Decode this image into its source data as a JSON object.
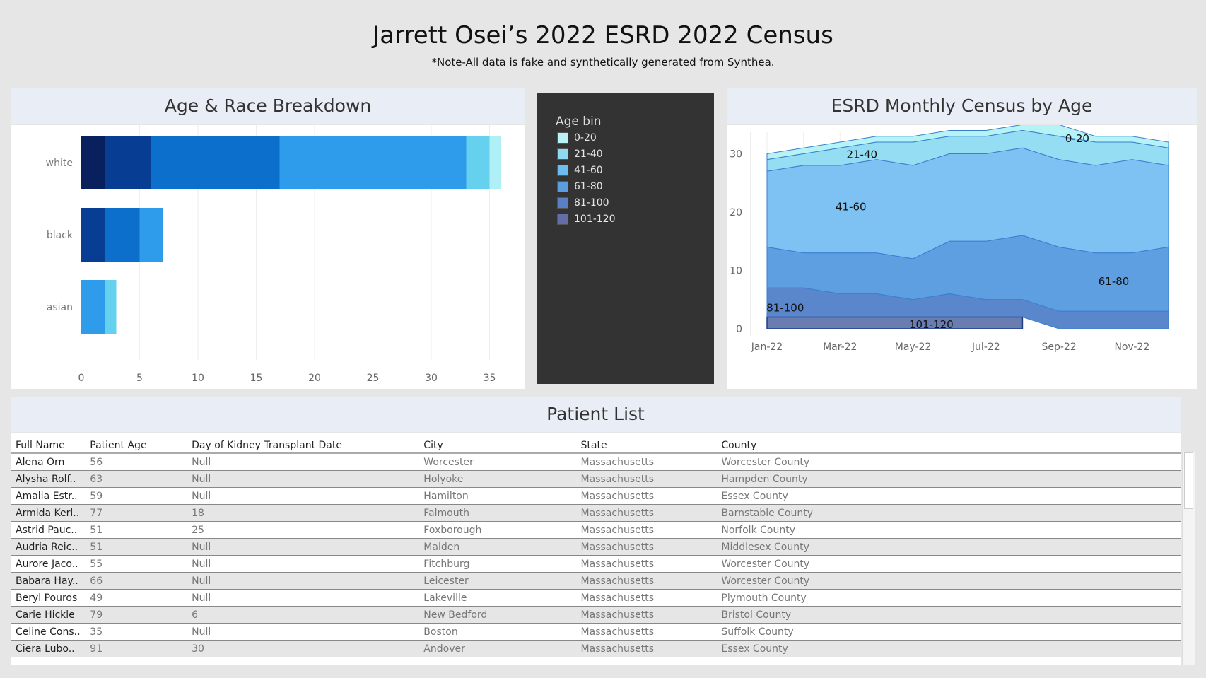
{
  "header": {
    "title": "Jarrett Osei’s 2022 ESRD 2022 Census",
    "subtitle": "*Note-All data is fake and synthetically generated from Synthea."
  },
  "legend": {
    "title": "Age bin",
    "items": [
      {
        "label": "0-20",
        "color": "#b8f2f5"
      },
      {
        "label": "21-40",
        "color": "#8fd9f0"
      },
      {
        "label": "41-60",
        "color": "#6dbcf0"
      },
      {
        "label": "61-80",
        "color": "#5a9ee0"
      },
      {
        "label": "81-100",
        "color": "#5a80c4"
      },
      {
        "label": "101-120",
        "color": "#636ea8"
      }
    ]
  },
  "patient_list": {
    "title": "Patient List",
    "columns": [
      "Full Name",
      "Patient Age",
      "Day of Kidney Transplant Date",
      "City",
      "State",
      "County"
    ],
    "rows": [
      [
        "Alena Orn",
        "56",
        "Null",
        "Worcester",
        "Massachusetts",
        "Worcester County"
      ],
      [
        "Alysha Rolf..",
        "63",
        "Null",
        "Holyoke",
        "Massachusetts",
        "Hampden County"
      ],
      [
        "Amalia Estr..",
        "59",
        "Null",
        "Hamilton",
        "Massachusetts",
        "Essex County"
      ],
      [
        "Armida Kerl..",
        "77",
        "18",
        "Falmouth",
        "Massachusetts",
        "Barnstable County"
      ],
      [
        "Astrid Pauc..",
        "51",
        "25",
        "Foxborough",
        "Massachusetts",
        "Norfolk County"
      ],
      [
        "Audria Reic..",
        "51",
        "Null",
        "Malden",
        "Massachusetts",
        "Middlesex County"
      ],
      [
        "Aurore Jaco..",
        "55",
        "Null",
        "Fitchburg",
        "Massachusetts",
        "Worcester County"
      ],
      [
        "Babara Hay..",
        "66",
        "Null",
        "Leicester",
        "Massachusetts",
        "Worcester County"
      ],
      [
        "Beryl Pouros",
        "49",
        "Null",
        "Lakeville",
        "Massachusetts",
        "Plymouth County"
      ],
      [
        "Carie Hickle",
        "79",
        "6",
        "New Bedford",
        "Massachusetts",
        "Bristol County"
      ],
      [
        "Celine Cons..",
        "35",
        "Null",
        "Boston",
        "Massachusetts",
        "Suffolk County"
      ],
      [
        "Ciera Lubo..",
        "91",
        "30",
        "Andover",
        "Massachusetts",
        "Essex County"
      ]
    ]
  },
  "chart_data": [
    {
      "type": "bar",
      "orientation": "horizontal",
      "stacked": true,
      "title": "Age & Race Breakdown",
      "categories": [
        "white",
        "black",
        "asian"
      ],
      "xlim": [
        0,
        36
      ],
      "xticks": [
        0,
        5,
        10,
        15,
        20,
        25,
        30,
        35
      ],
      "series": [
        {
          "name": "101-120",
          "color": "#08205e",
          "values": [
            2,
            0,
            0
          ]
        },
        {
          "name": "81-100",
          "color": "#083d94",
          "values": [
            4,
            2,
            0
          ]
        },
        {
          "name": "61-80",
          "color": "#0d6fcc",
          "values": [
            11,
            3,
            0
          ]
        },
        {
          "name": "41-60",
          "color": "#2e9cea",
          "values": [
            16,
            2,
            2
          ]
        },
        {
          "name": "21-40",
          "color": "#65d1ee",
          "values": [
            2,
            0,
            1
          ]
        },
        {
          "name": "0-20",
          "color": "#aef0f5",
          "values": [
            1,
            0,
            0
          ]
        }
      ]
    },
    {
      "type": "area",
      "stacked": true,
      "title": "ESRD Monthly Census by Age",
      "x": [
        "Jan-22",
        "Feb-22",
        "Mar-22",
        "Apr-22",
        "May-22",
        "Jun-22",
        "Jul-22",
        "Aug-22",
        "Sep-22",
        "Oct-22",
        "Nov-22",
        "Dec-22"
      ],
      "xticks": [
        "Jan-22",
        "Mar-22",
        "May-22",
        "Jul-22",
        "Sep-22",
        "Nov-22"
      ],
      "ylim": [
        0,
        35
      ],
      "yticks": [
        0,
        10,
        20,
        30
      ],
      "series": [
        {
          "name": "101-120",
          "color": "#6a7db0",
          "values": [
            2,
            2,
            2,
            2,
            2,
            2,
            2,
            2,
            null,
            null,
            null,
            null
          ]
        },
        {
          "name": "81-100",
          "color": "#5a86cc",
          "values": [
            5,
            5,
            4,
            4,
            3,
            4,
            3,
            3,
            3,
            3,
            3,
            3
          ]
        },
        {
          "name": "61-80",
          "color": "#5e9fe2",
          "values": [
            7,
            6,
            7,
            7,
            7,
            9,
            10,
            11,
            11,
            10,
            10,
            11
          ]
        },
        {
          "name": "41-60",
          "color": "#7dc2f2",
          "values": [
            13,
            15,
            15,
            16,
            16,
            15,
            15,
            15,
            15,
            15,
            16,
            14
          ]
        },
        {
          "name": "21-40",
          "color": "#94ddf2",
          "values": [
            2,
            2,
            3,
            3,
            4,
            3,
            3,
            3,
            4,
            4,
            3,
            3
          ]
        },
        {
          "name": "0-20",
          "color": "#b5f3f6",
          "values": [
            1,
            1,
            1,
            1,
            1,
            1,
            1,
            1,
            2,
            1,
            1,
            1
          ]
        }
      ],
      "annotations": [
        "0-20",
        "21-40",
        "41-60",
        "61-80",
        "81-100",
        "101-120"
      ]
    }
  ]
}
